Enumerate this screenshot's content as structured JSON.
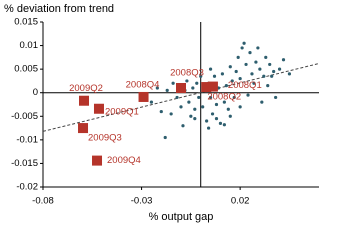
{
  "chart_data": {
    "type": "scatter",
    "ylabel": "% deviation from trend",
    "xlabel": "% output gap",
    "xlim": [
      -0.08,
      0.06
    ],
    "xticks": [
      -0.08,
      -0.03,
      0.02
    ],
    "ylim": [
      -0.02,
      0.015
    ],
    "yticks": [
      0.015,
      0.01,
      0.005,
      0,
      -0.005,
      -0.01,
      -0.015,
      -0.02
    ],
    "trend": {
      "color": "#444444",
      "x": [
        -0.08,
        0.06
      ],
      "values": [
        -0.0082,
        0.0062
      ]
    },
    "series": [
      {
        "color": "#2e5e6e",
        "x": [
          -0.025,
          -0.022,
          -0.02,
          -0.018,
          -0.017,
          -0.015,
          -0.014,
          -0.012,
          -0.011,
          -0.01,
          -0.009,
          -0.008,
          -0.007,
          -0.006,
          -0.005,
          -0.004,
          -0.003,
          -0.002,
          -0.001,
          0,
          0.001,
          0.002,
          0.003,
          0.004,
          0.005,
          0.006,
          0.007,
          0.008,
          0.009,
          0.01,
          0.011,
          0.012,
          0.013,
          0.014,
          0.015,
          0.016,
          0.017,
          0.018,
          0.019,
          0.02,
          0.021,
          0.022,
          0.023,
          0.024,
          0.025,
          0.026,
          0.027,
          0.028,
          0.029,
          0.03,
          0.031,
          0.032,
          0.033,
          0.034,
          0.035,
          0.036,
          0.037,
          0.038,
          0.04,
          0.042,
          0.045,
          0.008,
          0.012,
          0.004,
          -0.003,
          0.015,
          0.02,
          0.005
        ],
        "values": [
          -0.002,
          0.001,
          -0.004,
          -0.0095,
          0.0005,
          -0.0045,
          0.002,
          -0.001,
          0.0015,
          -0.003,
          -0.007,
          0.0005,
          0.0025,
          -0.002,
          -0.005,
          0.001,
          -0.0035,
          0.002,
          -0.001,
          0.0035,
          -0.003,
          0.0005,
          -0.006,
          0.002,
          -0.001,
          -0.0045,
          0.0035,
          -0.0025,
          0.001,
          -0.0065,
          0.004,
          -0.002,
          0.0015,
          -0.0035,
          0.0055,
          0.0025,
          -0.001,
          0.0045,
          0.0075,
          0.003,
          0.0095,
          0.0105,
          0.006,
          -0.0005,
          0.0085,
          0.004,
          0.002,
          0.0065,
          0.0095,
          0.005,
          -0.002,
          0.0035,
          0.0075,
          0.0015,
          0.006,
          0.0035,
          0.0045,
          -0.001,
          0.005,
          0.007,
          0.004,
          -0.0055,
          -0.0068,
          -0.0075,
          -0.0055,
          -0.005,
          -0.003,
          0.005
        ]
      },
      {
        "color": "#b5342a",
        "x": [
          0.0062,
          0.0028,
          -0.01,
          -0.029,
          -0.0516,
          -0.0592,
          -0.0597,
          -0.0526
        ],
        "values": [
          0.0013,
          0.0012,
          0.001,
          -0.0009,
          -0.0034,
          -0.0017,
          -0.0075,
          -0.0144
        ],
        "labels": [
          "2008Q1",
          "2008Q2",
          "2008Q3",
          "2008Q4",
          "2009Q1",
          "2009Q2",
          "2009Q3",
          "2009Q4"
        ]
      }
    ]
  }
}
